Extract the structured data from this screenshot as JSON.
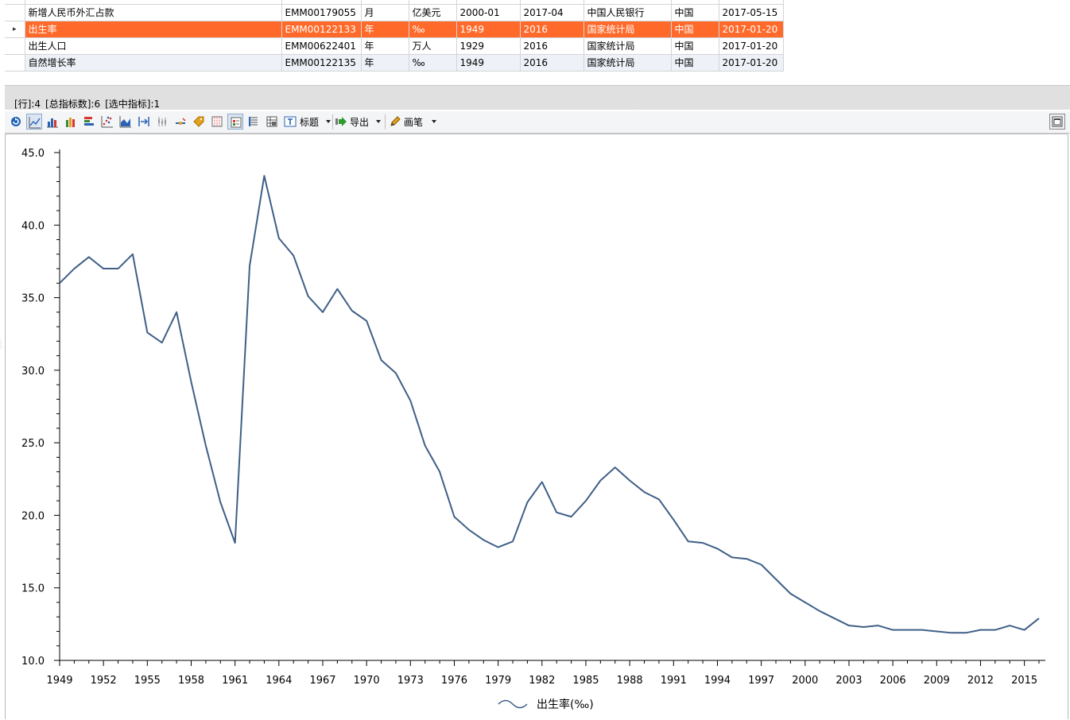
{
  "table": {
    "rows": [
      {
        "name": "",
        "code": "",
        "freq": "",
        "unit": "",
        "start": "",
        "end": "",
        "source": "",
        "region": "",
        "updated": ""
      },
      {
        "name": "新增人民币外汇占款",
        "code": "EMM00179055",
        "freq": "月",
        "unit": "亿美元",
        "start": "2000-01",
        "end": "2017-04",
        "source": "中国人民银行",
        "region": "中国",
        "updated": "2017-05-15"
      },
      {
        "name": "出生率",
        "code": "EMM00122133",
        "freq": "年",
        "unit": "‰",
        "start": "1949",
        "end": "2016",
        "source": "国家统计局",
        "region": "中国",
        "updated": "2017-01-20",
        "selected": true
      },
      {
        "name": "出生人口",
        "code": "EMM00622401",
        "freq": "年",
        "unit": "万人",
        "start": "1929",
        "end": "2016",
        "source": "国家统计局",
        "region": "中国",
        "updated": "2017-01-20"
      },
      {
        "name": "自然增长率",
        "code": "EMM00122135",
        "freq": "年",
        "unit": "‰",
        "start": "1949",
        "end": "2016",
        "source": "国家统计局",
        "region": "中国",
        "updated": "2017-01-20"
      }
    ],
    "selected_indicator_glyph": "▸"
  },
  "status": {
    "rows": "[行]:4",
    "total": "[总指标数]:6",
    "selected": "[选中指标]:1"
  },
  "toolbar": {
    "title_label": "标题",
    "export_label": "导出",
    "pen_label": "画笔"
  },
  "chart_data": {
    "type": "line",
    "x": [
      1949,
      1950,
      1951,
      1952,
      1953,
      1954,
      1955,
      1956,
      1957,
      1958,
      1959,
      1960,
      1961,
      1962,
      1963,
      1964,
      1965,
      1966,
      1967,
      1968,
      1969,
      1970,
      1971,
      1972,
      1973,
      1974,
      1975,
      1976,
      1977,
      1978,
      1979,
      1980,
      1981,
      1982,
      1983,
      1984,
      1985,
      1986,
      1987,
      1988,
      1989,
      1990,
      1991,
      1992,
      1993,
      1994,
      1995,
      1996,
      1997,
      1998,
      1999,
      2000,
      2001,
      2002,
      2003,
      2004,
      2005,
      2006,
      2007,
      2008,
      2009,
      2010,
      2011,
      2012,
      2013,
      2014,
      2015,
      2016
    ],
    "series": [
      {
        "name": "出生率(‰)",
        "color": "#3f5f86",
        "values": [
          36.0,
          37.0,
          37.8,
          37.0,
          37.0,
          38.0,
          32.6,
          31.9,
          34.0,
          29.2,
          24.8,
          20.9,
          18.1,
          37.2,
          43.4,
          39.1,
          37.9,
          35.1,
          34.0,
          35.6,
          34.1,
          33.4,
          30.7,
          29.8,
          27.9,
          24.8,
          23.0,
          19.9,
          19.0,
          18.3,
          17.8,
          18.2,
          20.9,
          22.3,
          20.2,
          19.9,
          21.0,
          22.4,
          23.3,
          22.4,
          21.6,
          21.1,
          19.7,
          18.2,
          18.1,
          17.7,
          17.1,
          17.0,
          16.6,
          15.6,
          14.6,
          14.0,
          13.4,
          12.9,
          12.4,
          12.3,
          12.4,
          12.1,
          12.1,
          12.1,
          12.0,
          11.9,
          11.9,
          12.1,
          12.1,
          12.4,
          12.1,
          12.9
        ]
      }
    ],
    "x_tick_labels": [
      "1949",
      "1952",
      "1955",
      "1958",
      "1961",
      "1964",
      "1967",
      "1970",
      "1973",
      "1976",
      "1979",
      "1982",
      "1985",
      "1988",
      "1991",
      "1994",
      "1997",
      "2000",
      "2003",
      "2006",
      "2009",
      "2012",
      "2015"
    ],
    "y_tick_labels": [
      "45.0",
      "40.0",
      "35.0",
      "30.0",
      "25.0",
      "20.0",
      "15.0",
      "10.0"
    ],
    "xlim": [
      1949,
      2016
    ],
    "ylim": [
      10.0,
      45.0
    ],
    "grid": false,
    "legend": "bottom-center"
  }
}
